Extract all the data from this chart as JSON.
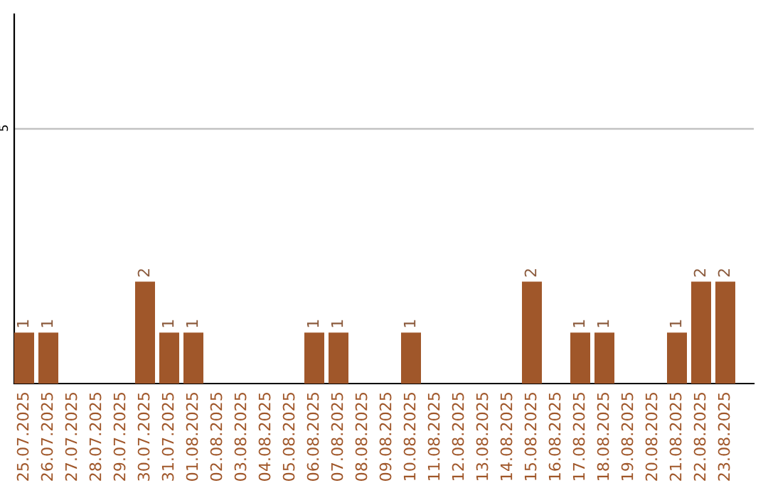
{
  "chart_data": {
    "type": "bar",
    "categories": [
      "25.07.2025",
      "26.07.2025",
      "27.07.2025",
      "28.07.2025",
      "29.07.2025",
      "30.07.2025",
      "31.07.2025",
      "01.08.2025",
      "02.08.2025",
      "03.08.2025",
      "04.08.2025",
      "05.08.2025",
      "06.08.2025",
      "07.08.2025",
      "08.08.2025",
      "09.08.2025",
      "10.08.2025",
      "11.08.2025",
      "12.08.2025",
      "13.08.2025",
      "14.08.2025",
      "15.08.2025",
      "16.08.2025",
      "17.08.2025",
      "18.08.2025",
      "19.08.2025",
      "20.08.2025",
      "21.08.2025",
      "22.08.2025",
      "23.08.2025"
    ],
    "values": [
      1,
      1,
      0,
      0,
      0,
      2,
      1,
      1,
      0,
      0,
      0,
      0,
      1,
      1,
      0,
      0,
      1,
      0,
      0,
      0,
      0,
      2,
      0,
      1,
      1,
      0,
      0,
      1,
      2,
      2
    ],
    "value_labels": [
      "1",
      "1",
      null,
      null,
      null,
      "2",
      "1",
      "1",
      null,
      null,
      null,
      null,
      "1",
      "1",
      null,
      null,
      "1",
      null,
      null,
      null,
      null,
      "2",
      null,
      "1",
      "1",
      null,
      null,
      "1",
      "2",
      "2"
    ],
    "color": "#a0572a",
    "ylim": [
      0,
      7.25
    ],
    "yticks": [
      5
    ],
    "grid": "y"
  }
}
